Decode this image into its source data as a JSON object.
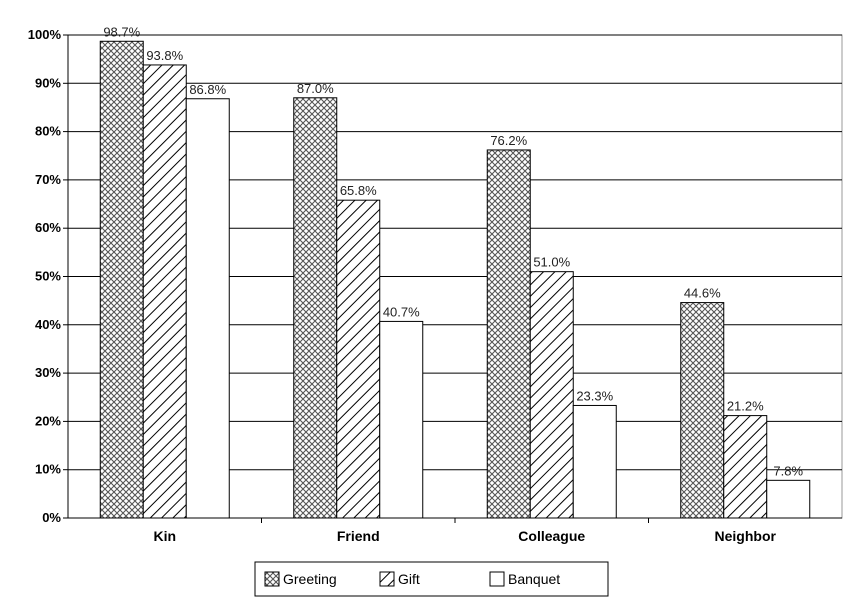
{
  "chart_data": {
    "type": "bar",
    "categories": [
      "Kin",
      "Friend",
      "Colleague",
      "Neighbor"
    ],
    "series": [
      {
        "name": "Greeting",
        "values": [
          98.7,
          87.0,
          76.2,
          44.6
        ],
        "pattern": "crosshatch"
      },
      {
        "name": "Gift",
        "values": [
          93.8,
          65.8,
          51.0,
          21.2
        ],
        "pattern": "diagonal"
      },
      {
        "name": "Banquet",
        "values": [
          86.8,
          40.7,
          23.3,
          7.8
        ],
        "pattern": "none"
      }
    ],
    "data_labels": [
      [
        "98.7%",
        "93.8%",
        "86.8%"
      ],
      [
        "87.0%",
        "65.8%",
        "40.7%"
      ],
      [
        "76.2%",
        "51.0%",
        "23.3%"
      ],
      [
        "44.6%",
        "21.2%",
        "7.8%"
      ]
    ],
    "y_ticks": [
      "0%",
      "10%",
      "20%",
      "30%",
      "40%",
      "50%",
      "60%",
      "70%",
      "80%",
      "90%",
      "100%"
    ],
    "ylim": [
      0,
      100
    ],
    "grid": true,
    "legend_position": "bottom",
    "title": "",
    "xlabel": "",
    "ylabel": ""
  }
}
